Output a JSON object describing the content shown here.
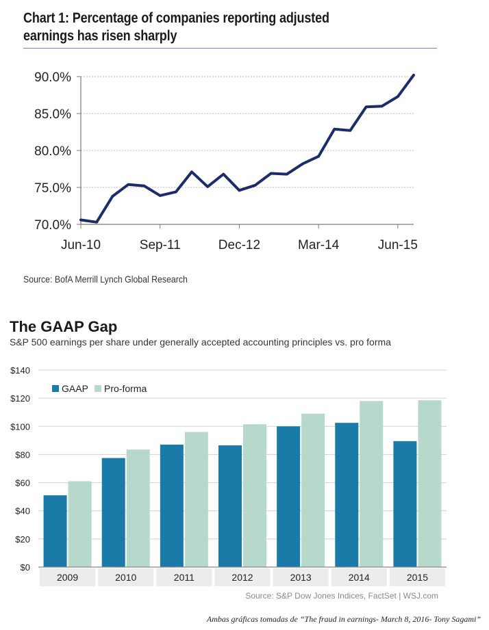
{
  "chart1": {
    "title": "Chart 1: Percentage of companies reporting adjusted earnings has risen sharply",
    "source": "Source: BofA Merrill Lynch Global Research",
    "colors": {
      "line": "#1c2c6b",
      "grid": "#b8b8b8",
      "axis": "#777777"
    },
    "chart_data": {
      "type": "line",
      "title": "Chart 1: Percentage of companies reporting adjusted earnings has risen sharply",
      "xlabel": "",
      "ylabel": "",
      "ylim": [
        70,
        90
      ],
      "ytick_values": [
        70,
        75,
        80,
        85,
        90
      ],
      "ytick_labels": [
        "70.0%",
        "75.0%",
        "80.0%",
        "85.0%",
        "90.0%"
      ],
      "xtick_labels": [
        "Jun-10",
        "Sep-11",
        "Dec-12",
        "Mar-14",
        "Jun-15"
      ],
      "xtick_indices": [
        0,
        5,
        10,
        15,
        20
      ],
      "x": [
        "Jun-10",
        "Sep-10",
        "Dec-10",
        "Mar-11",
        "Jun-11",
        "Sep-11",
        "Dec-11",
        "Mar-12",
        "Jun-12",
        "Sep-12",
        "Dec-12",
        "Mar-13",
        "Jun-13",
        "Sep-13",
        "Dec-13",
        "Mar-14",
        "Jun-14",
        "Sep-14",
        "Dec-14",
        "Mar-15",
        "Jun-15",
        "Sep-15"
      ],
      "values": [
        70.6,
        70.3,
        73.8,
        75.4,
        75.2,
        73.9,
        74.4,
        77.1,
        75.1,
        76.8,
        74.6,
        75.3,
        76.9,
        76.8,
        78.2,
        79.2,
        82.9,
        82.7,
        85.9,
        86.0,
        87.3,
        90.2
      ]
    }
  },
  "chart2": {
    "title": "The GAAP Gap",
    "subtitle": "S&P 500 earnings per share under generally accepted accounting principles vs. pro forma",
    "source": "Source: S&P Dow Jones Indices, FactSet  |  WSJ.com",
    "colors": {
      "gaap": "#1a7aa8",
      "proforma": "#b6d9cc",
      "grid": "#cfcfcf",
      "band": "#e6e6e6"
    },
    "chart_data": {
      "type": "bar",
      "title": "The GAAP Gap",
      "xlabel": "",
      "ylabel": "",
      "ylim": [
        0,
        140
      ],
      "ytick_values": [
        0,
        20,
        40,
        60,
        80,
        100,
        120,
        140
      ],
      "ytick_labels": [
        "$0",
        "$20",
        "$40",
        "$60",
        "$80",
        "$100",
        "$120",
        "$140"
      ],
      "categories": [
        "2009",
        "2010",
        "2011",
        "2012",
        "2013",
        "2014",
        "2015"
      ],
      "legend_position": "top-left",
      "series": [
        {
          "name": "GAAP",
          "values": [
            51,
            77.5,
            87,
            86.5,
            100,
            102.5,
            89.5
          ]
        },
        {
          "name": "Pro-forma",
          "values": [
            61,
            83.5,
            96,
            101.5,
            109,
            118,
            118.5
          ]
        }
      ]
    }
  },
  "footnote": "Ambas gráficas tomadas de “The fraud in earnings- March 8, 2016- Tony Sagami”"
}
